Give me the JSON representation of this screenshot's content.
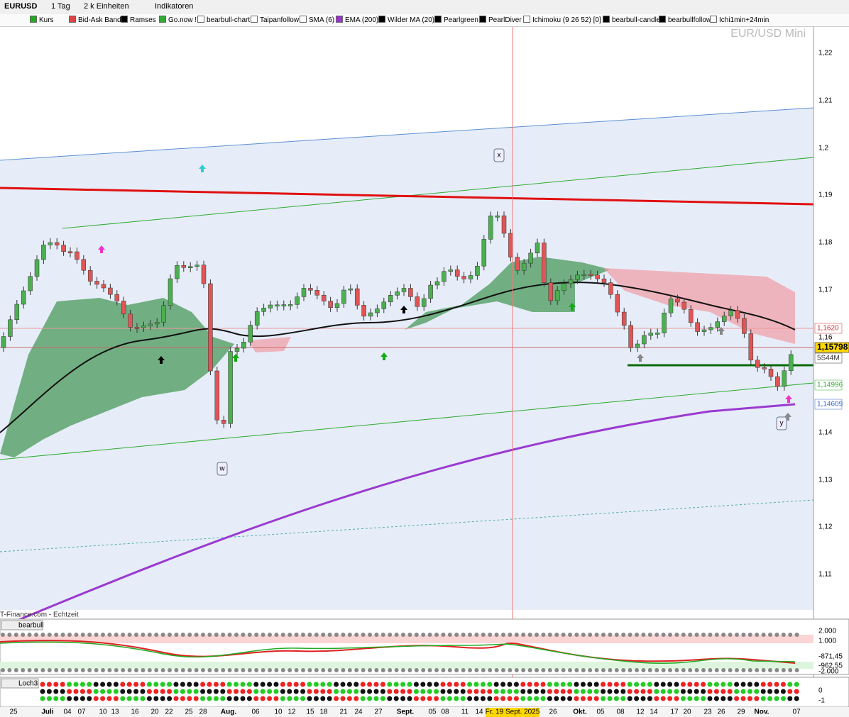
{
  "toolbar": {
    "symbol": "EURUSD",
    "period": "1 Tag",
    "units": "2 k Einheiten",
    "indicators": "Indikatoren"
  },
  "indicator_tabs": [
    "Kurs",
    "Bid-Ask Band",
    "Ramses",
    "Go.now !",
    "bearbull-chart",
    "Taipanfollow",
    "SMA (6)",
    "EMA (200)",
    "Wilder MA (20)",
    "Pearlgreen",
    "PearlDiver",
    "Ichimoku (9 26 52) [0]",
    "bearbull-candle",
    "bearbullfollow",
    "Ichi1min+24min"
  ],
  "watermark": "EUR/USD Mini",
  "price_axis": [
    "1,22",
    "1,21",
    "1,2",
    "1,19",
    "1,18",
    "1,17",
    "1,16",
    "1,14",
    "1,13",
    "1,12",
    "1,11"
  ],
  "price_badges": [
    "1,1620",
    "1,15798",
    "5S44M",
    "1,14996",
    "1,14609"
  ],
  "annotations": [
    "x",
    "w",
    "y"
  ],
  "source": "T-Finance.com - Echtzeit",
  "panels": [
    {
      "name": "bearbull",
      "axis": [
        "2.000",
        "1.000",
        "-871,45",
        "-962,55",
        "-2.000"
      ]
    },
    {
      "name": "Loch3",
      "axis": [
        "0",
        "-1"
      ]
    }
  ],
  "date_axis": [
    "25",
    "Juli",
    "04",
    "07",
    "10",
    "13",
    "16",
    "20",
    "22",
    "25",
    "28",
    "Aug.",
    "06",
    "10",
    "12",
    "15",
    "18",
    "21",
    "24",
    "27",
    "Sept.",
    "05",
    "08",
    "11",
    "14",
    "Fr. 19 Sept. 2025",
    "26",
    "Okt.",
    "05",
    "08",
    "12",
    "14",
    "17",
    "20",
    "23",
    "26",
    "29",
    "Nov.",
    "07"
  ]
}
